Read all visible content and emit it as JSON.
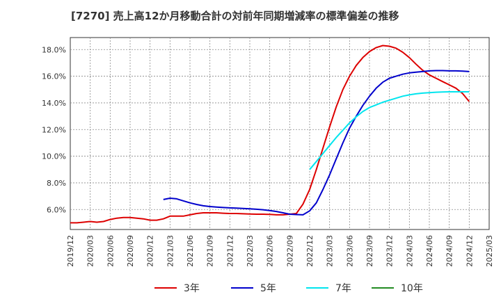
{
  "chart_data": {
    "type": "line",
    "title": "[7270]  売上高12か月移動合計の対前年同期増減率の標準偏差の推移",
    "xlabel": "",
    "ylabel": "",
    "ylim": [
      4.5,
      18.9
    ],
    "yticks": [
      "6.0%",
      "8.0%",
      "10.0%",
      "12.0%",
      "14.0%",
      "16.0%",
      "18.0%"
    ],
    "ytick_values": [
      6,
      8,
      10,
      12,
      14,
      16,
      18
    ],
    "xticks": [
      "2019/12",
      "2020/03",
      "2020/06",
      "2020/09",
      "2020/12",
      "2021/03",
      "2021/06",
      "2021/09",
      "2021/12",
      "2022/03",
      "2022/06",
      "2022/09",
      "2022/12",
      "2023/03",
      "2023/06",
      "2023/09",
      "2023/12",
      "2024/03",
      "2024/06",
      "2024/09",
      "2024/12",
      "2025/03"
    ],
    "xlim": [
      "2019/12",
      "2025/03"
    ],
    "grid": true,
    "legend_position": "bottom",
    "series": [
      {
        "name": "3年",
        "color": "#dd0000",
        "x": [
          "2019/12",
          "2020/01",
          "2020/02",
          "2020/03",
          "2020/04",
          "2020/05",
          "2020/06",
          "2020/07",
          "2020/08",
          "2020/09",
          "2020/10",
          "2020/11",
          "2020/12",
          "2021/01",
          "2021/02",
          "2021/03",
          "2021/04",
          "2021/05",
          "2021/06",
          "2021/07",
          "2021/08",
          "2021/09",
          "2021/10",
          "2021/11",
          "2021/12",
          "2022/01",
          "2022/02",
          "2022/03",
          "2022/04",
          "2022/05",
          "2022/06",
          "2022/07",
          "2022/08",
          "2022/09",
          "2022/10",
          "2022/11",
          "2022/12",
          "2023/01",
          "2023/02",
          "2023/03",
          "2023/04",
          "2023/05",
          "2023/06",
          "2023/07",
          "2023/08",
          "2023/09",
          "2023/10",
          "2023/11",
          "2023/12",
          "2024/01",
          "2024/02",
          "2024/03",
          "2024/04",
          "2024/05",
          "2024/06",
          "2024/07",
          "2024/08",
          "2024/09",
          "2024/10",
          "2024/11",
          "2024/12"
        ],
        "values": [
          5.0,
          5.0,
          5.05,
          5.1,
          5.05,
          5.1,
          5.25,
          5.35,
          5.4,
          5.4,
          5.35,
          5.3,
          5.2,
          5.2,
          5.3,
          5.5,
          5.5,
          5.5,
          5.6,
          5.7,
          5.75,
          5.75,
          5.75,
          5.72,
          5.7,
          5.7,
          5.68,
          5.66,
          5.65,
          5.65,
          5.63,
          5.6,
          5.6,
          5.65,
          5.7,
          6.4,
          7.5,
          9.0,
          10.6,
          12.2,
          13.7,
          15.0,
          16.0,
          16.8,
          17.4,
          17.85,
          18.15,
          18.3,
          18.25,
          18.1,
          17.8,
          17.4,
          16.9,
          16.45,
          16.1,
          15.85,
          15.6,
          15.35,
          15.1,
          14.7,
          14.1
        ]
      },
      {
        "name": "5年",
        "color": "#0000cc",
        "x": [
          "2021/02",
          "2021/03",
          "2021/04",
          "2021/05",
          "2021/06",
          "2021/07",
          "2021/08",
          "2021/09",
          "2021/10",
          "2021/11",
          "2021/12",
          "2022/01",
          "2022/02",
          "2022/03",
          "2022/04",
          "2022/05",
          "2022/06",
          "2022/07",
          "2022/08",
          "2022/09",
          "2022/10",
          "2022/11",
          "2022/12",
          "2023/01",
          "2023/02",
          "2023/03",
          "2023/04",
          "2023/05",
          "2023/06",
          "2023/07",
          "2023/08",
          "2023/09",
          "2023/10",
          "2023/11",
          "2023/12",
          "2024/01",
          "2024/02",
          "2024/03",
          "2024/04",
          "2024/05",
          "2024/06",
          "2024/07",
          "2024/08",
          "2024/09",
          "2024/10",
          "2024/11",
          "2024/12"
        ],
        "values": [
          6.75,
          6.85,
          6.8,
          6.65,
          6.5,
          6.38,
          6.28,
          6.22,
          6.18,
          6.15,
          6.12,
          6.1,
          6.08,
          6.05,
          6.02,
          5.98,
          5.92,
          5.85,
          5.75,
          5.65,
          5.62,
          5.6,
          5.9,
          6.5,
          7.5,
          8.6,
          9.8,
          11.0,
          12.1,
          13.0,
          13.8,
          14.5,
          15.1,
          15.55,
          15.85,
          16.0,
          16.15,
          16.25,
          16.3,
          16.35,
          16.4,
          16.42,
          16.42,
          16.4,
          16.4,
          16.38,
          16.35
        ]
      },
      {
        "name": "7年",
        "color": "#00e5ee",
        "x": [
          "2022/12",
          "2023/01",
          "2023/02",
          "2023/03",
          "2023/04",
          "2023/05",
          "2023/06",
          "2023/07",
          "2023/08",
          "2023/09",
          "2023/10",
          "2023/11",
          "2023/12",
          "2024/01",
          "2024/02",
          "2024/03",
          "2024/04",
          "2024/05",
          "2024/06",
          "2024/07",
          "2024/08",
          "2024/09",
          "2024/10",
          "2024/11",
          "2024/12"
        ],
        "values": [
          9.0,
          9.6,
          10.2,
          10.8,
          11.4,
          11.95,
          12.5,
          12.95,
          13.35,
          13.65,
          13.85,
          14.05,
          14.2,
          14.35,
          14.5,
          14.6,
          14.68,
          14.73,
          14.77,
          14.8,
          14.82,
          14.83,
          14.83,
          14.83,
          14.83
        ]
      },
      {
        "name": "10年",
        "color": "#228b22",
        "x": [],
        "values": []
      }
    ]
  }
}
